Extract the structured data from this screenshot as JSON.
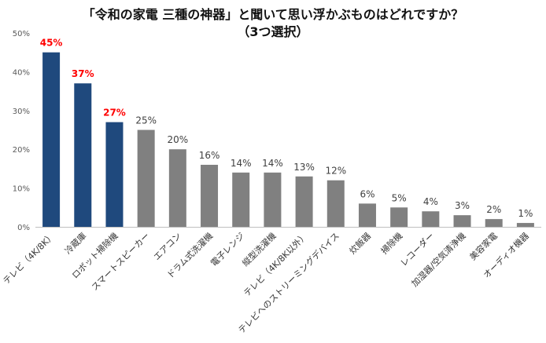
{
  "chart_data": {
    "type": "bar",
    "title_line1": "「令和の家電 三種の神器」と聞いて思い浮かぶものはどれですか？",
    "title_line2": "（3つ選択）",
    "categories": [
      "テレビ（4K/8K）",
      "冷蔵庫",
      "ロボット掃除機",
      "スマートスピーカー",
      "エアコン",
      "ドラム式洗濯機",
      "電子レンジ",
      "縦型洗濯機",
      "テレビ（4K/8K以外）",
      "テレビへのストリーミングデバイス",
      "炊飯器",
      "掃除機",
      "レコーダー",
      "加湿器/空気清浄機",
      "美容家電",
      "オーディオ機器"
    ],
    "values": [
      45,
      37,
      27,
      25,
      20,
      16,
      14,
      14,
      13,
      12,
      6,
      5,
      4,
      3,
      2,
      1
    ],
    "value_labels": [
      "45%",
      "37%",
      "27%",
      "25%",
      "20%",
      "16%",
      "14%",
      "14%",
      "13%",
      "12%",
      "6%",
      "5%",
      "4%",
      "3%",
      "2%",
      "1%"
    ],
    "highlight_count": 3,
    "ylim": [
      0,
      50
    ],
    "y_ticks": [
      "0%",
      "10%",
      "20%",
      "30%",
      "40%",
      "50%"
    ],
    "xlabel": "",
    "ylabel": "",
    "grid": false,
    "legend": "none",
    "colors": {
      "highlight_bar": "#1f497d",
      "other_bar": "#808080",
      "highlight_label": "#ff0000",
      "other_label": "#404040",
      "axis": "#bfbfbf"
    }
  }
}
